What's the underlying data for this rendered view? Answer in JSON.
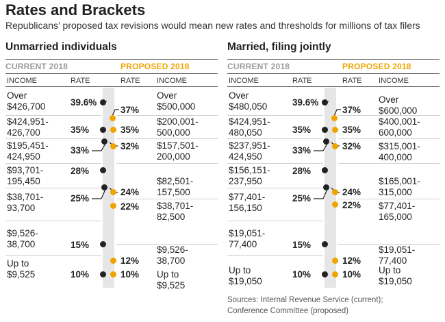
{
  "header": {
    "title": "Rates and Brackets",
    "subtitle": "Republicans’ proposed tax revisions would  mean new rates and thresholds for millions of  tax filers"
  },
  "column_headers": {
    "current": "CURRENT 2018",
    "proposed": "PROPOSED 2018",
    "income": "INCOME",
    "rate": "RATE"
  },
  "colors": {
    "current_dot": "#222222",
    "proposed": "#f0a400",
    "current_label": "#9a9a9a"
  },
  "panels": [
    {
      "title": "Unmarried individuals",
      "current": [
        {
          "income_1": "Over",
          "income_2": "$426,700",
          "rate": "39.6%"
        },
        {
          "income_1": "$424,951-",
          "income_2": "426,700",
          "rate": "35%"
        },
        {
          "income_1": "$195,451-",
          "income_2": "424,950",
          "rate": "33%"
        },
        {
          "income_1": "$93,701-",
          "income_2": "195,450",
          "rate": "28%"
        },
        {
          "income_1": "$38,701-",
          "income_2": "93,700",
          "rate": "25%"
        },
        {
          "income_1": "$9,526-",
          "income_2": "38,700",
          "rate": "15%"
        },
        {
          "income_1": "Up to",
          "income_2": "$9,525",
          "rate": "10%"
        }
      ],
      "proposed": [
        {
          "rate": "37%",
          "income_1": "Over",
          "income_2": "$500,000"
        },
        {
          "rate": "35%",
          "income_1": "$200,001-",
          "income_2": "500,000"
        },
        {
          "rate": "32%",
          "income_1": "$157,501-",
          "income_2": "200,000"
        },
        {
          "rate": "24%",
          "income_1": "$82,501-",
          "income_2": "157,500"
        },
        {
          "rate": "22%",
          "income_1": "$38,701-",
          "income_2": "82,500"
        },
        {
          "rate": "12%",
          "income_1": "$9,526-",
          "income_2": "38,700"
        },
        {
          "rate": "10%",
          "income_1": "Up to",
          "income_2": "$9,525"
        }
      ]
    },
    {
      "title": "Married, filing jointly",
      "current": [
        {
          "income_1": "Over",
          "income_2": "$480,050",
          "rate": "39.6%"
        },
        {
          "income_1": "$424,951-",
          "income_2": "480,050",
          "rate": "35%"
        },
        {
          "income_1": "$237,951-",
          "income_2": "424,950",
          "rate": "33%"
        },
        {
          "income_1": "$156,151-",
          "income_2": "237,950",
          "rate": "28%"
        },
        {
          "income_1": "$77,401-",
          "income_2": "156,150",
          "rate": "25%"
        },
        {
          "income_1": "$19,051-",
          "income_2": "77,400",
          "rate": "15%"
        },
        {
          "income_1": "Up to",
          "income_2": " $19,050",
          "rate": "10%"
        }
      ],
      "proposed": [
        {
          "rate": "37%",
          "income_1": "Over",
          "income_2": "$600,000"
        },
        {
          "rate": "35%",
          "income_1": "$400,001-",
          "income_2": "600,000"
        },
        {
          "rate": "32%",
          "income_1": "$315,001-",
          "income_2": "400,000"
        },
        {
          "rate": "24%",
          "income_1": "$165,001-",
          "income_2": "315,000"
        },
        {
          "rate": "22%",
          "income_1": "$77,401-",
          "income_2": "165,000"
        },
        {
          "rate": "12%",
          "income_1": "$19,051-",
          "income_2": "77,400"
        },
        {
          "rate": "10%",
          "income_1": "Up to",
          "income_2": "$19,050"
        }
      ]
    }
  ],
  "sources": {
    "line1": "Sources: Internal Revenue Service (current);",
    "line2": "Conference Committee (proposed)"
  }
}
